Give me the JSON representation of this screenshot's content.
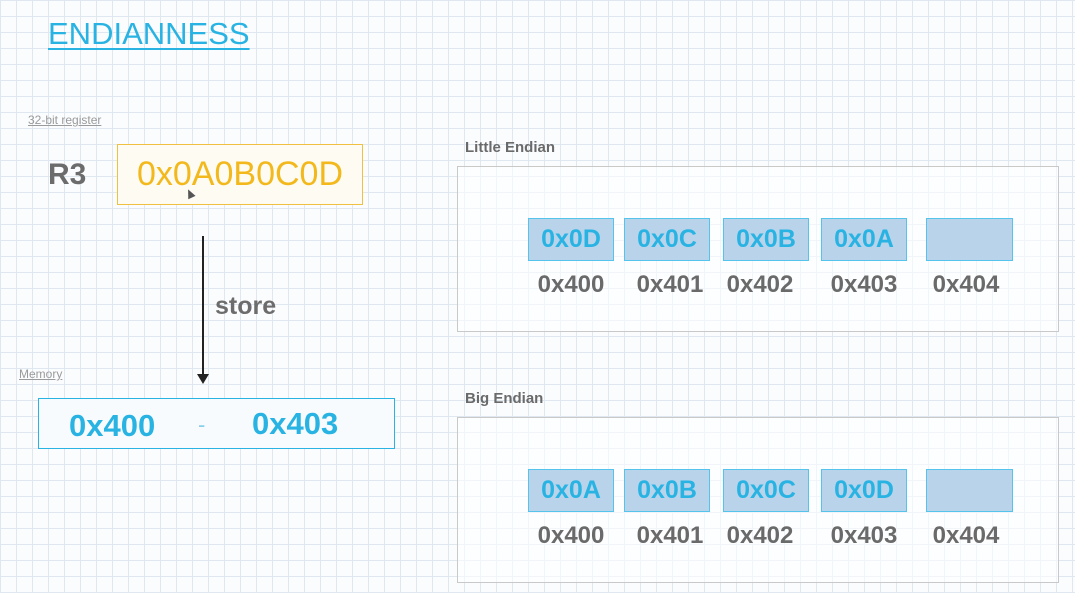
{
  "title": "ENDIANNESS",
  "register": {
    "caption": "32-bit register",
    "name": "R3",
    "value": "0x0A0B0C0D"
  },
  "store_label": "store",
  "memory": {
    "caption": "Memory",
    "start": "0x400",
    "separator": "-",
    "end": "0x403"
  },
  "little_endian": {
    "title": "Little Endian",
    "bytes": [
      "0x0D",
      "0x0C",
      "0x0B",
      "0x0A",
      ""
    ],
    "addresses": [
      "0x400",
      "0x401",
      "0x402",
      "0x403",
      "0x404"
    ]
  },
  "big_endian": {
    "title": "Big Endian",
    "bytes": [
      "0x0A",
      "0x0B",
      "0x0C",
      "0x0D",
      ""
    ],
    "addresses": [
      "0x400",
      "0x401",
      "0x402",
      "0x403",
      "0x404"
    ]
  },
  "colors": {
    "accent_blue": "#29b3e3",
    "register_gold": "#f2b81c",
    "cell_fill": "#b8d3ea"
  }
}
